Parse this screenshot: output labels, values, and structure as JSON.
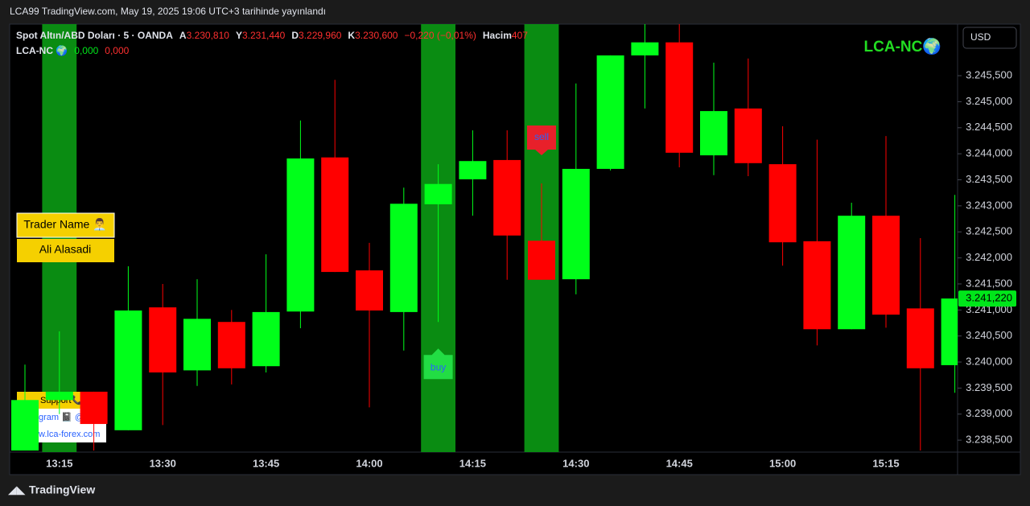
{
  "page_header": "LCA99 TradingView.com, May 19, 2025 19:06 UTC+3 tarihinde yayınlandı",
  "footer_logo": "TradingView",
  "currency_button": "USD",
  "watermark": "LCA-NC🌍",
  "trader_box": {
    "title": "Trader Name 👨‍💼",
    "name": "Ali Alasadi"
  },
  "support_box": {
    "title": "Support📞",
    "telegram": "gram 📓 @L",
    "website": "w.lca-forex.com"
  },
  "chart_data": {
    "type": "candlestick",
    "legend": {
      "symbol": "Spot Altın/ABD Doları · 5 · OANDA",
      "ohlc": [
        {
          "key": "A",
          "value": "3.230,810"
        },
        {
          "key": "Y",
          "value": "3.231,440"
        },
        {
          "key": "D",
          "value": "3.229,960"
        },
        {
          "key": "K",
          "value": "3.230,600"
        }
      ],
      "change": "−0,220 (−0,01%)",
      "volume_label": "Hacim",
      "volume": "407"
    },
    "indicator": {
      "name": "LCA-NC 🌍",
      "values": [
        "0,000",
        "0,000"
      ]
    },
    "categories": [
      null,
      "13:15",
      null,
      null,
      "13:30",
      null,
      null,
      "13:45",
      null,
      null,
      "14:00",
      null,
      null,
      "14:15",
      null,
      null,
      "14:30",
      null,
      null,
      "14:45",
      null,
      null,
      "15:00",
      null,
      null,
      "15:15",
      null,
      null
    ],
    "open": [
      3238.3,
      3239.27,
      3239.43,
      3238.69,
      3241.05,
      3239.84,
      3240.77,
      3239.92,
      3240.97,
      3243.93,
      3241.76,
      3240.96,
      3243.03,
      3243.51,
      3243.88,
      3242.33,
      3241.59,
      3243.71,
      3245.89,
      3246.14,
      3243.97,
      3244.87,
      3243.8,
      3242.32,
      3240.63,
      3242.81,
      3241.03,
      3239.94
    ],
    "high": [
      3239.95,
      3240.59,
      3239.43,
      3241.84,
      3241.5,
      3241.59,
      3241.0,
      3242.07,
      3244.64,
      3245.42,
      3242.29,
      3243.35,
      3243.8,
      3244.45,
      3244.45,
      3243.43,
      3245.35,
      3245.89,
      3246.49,
      3246.49,
      3245.75,
      3245.83,
      3244.53,
      3244.27,
      3243.06,
      3244.34,
      3242.38,
      3243.21
    ],
    "low": [
      3238.3,
      3239.0,
      3238.3,
      3238.69,
      3238.79,
      3239.54,
      3239.57,
      3239.8,
      3240.65,
      3241.73,
      3239.13,
      3240.22,
      3240.77,
      3242.81,
      3241.58,
      3241.58,
      3241.3,
      3243.68,
      3244.87,
      3243.74,
      3243.59,
      3243.57,
      3241.85,
      3240.32,
      3240.63,
      3240.66,
      3238.3,
      3239.41
    ],
    "close": [
      3239.27,
      3239.43,
      3238.81,
      3240.99,
      3239.8,
      3240.83,
      3239.88,
      3240.96,
      3243.91,
      3241.73,
      3240.99,
      3243.04,
      3243.42,
      3243.86,
      3242.43,
      3241.58,
      3243.71,
      3245.89,
      3246.14,
      3244.02,
      3244.82,
      3243.82,
      3242.3,
      3240.63,
      3242.81,
      3240.91,
      3239.88,
      3241.22
    ],
    "up_color": "#00ff1a",
    "down_color": "#ff0000",
    "ylim": [
      3238.27,
      3246.49
    ],
    "yticks": [
      {
        "value": 3238.5,
        "label": "3.238,500"
      },
      {
        "value": 3239,
        "label": "3.239,000"
      },
      {
        "value": 3239.5,
        "label": "3.239,500"
      },
      {
        "value": 3240,
        "label": "3.240,000"
      },
      {
        "value": 3240.5,
        "label": "3.240,500"
      },
      {
        "value": 3241,
        "label": "3.241,000"
      },
      {
        "value": 3241.5,
        "label": "3.241,500"
      },
      {
        "value": 3242,
        "label": "3.242,000"
      },
      {
        "value": 3242.5,
        "label": "3.242,500"
      },
      {
        "value": 3243,
        "label": "3.243,000"
      },
      {
        "value": 3243.5,
        "label": "3.243,500"
      },
      {
        "value": 3244,
        "label": "3.244,000"
      },
      {
        "value": 3244.5,
        "label": "3.244,500"
      },
      {
        "value": 3245,
        "label": "3.245,000"
      },
      {
        "value": 3245.5,
        "label": "3.245,500"
      }
    ],
    "last_price": {
      "value": 3241.22,
      "label": "3.241,220"
    },
    "highlight_color": "#0a8c12",
    "highlights": [
      1,
      12,
      15
    ],
    "signals": [
      {
        "label": "buy",
        "index": 12,
        "position": "below"
      },
      {
        "label": "sell",
        "index": 15,
        "position": "above"
      }
    ],
    "grid": false
  }
}
